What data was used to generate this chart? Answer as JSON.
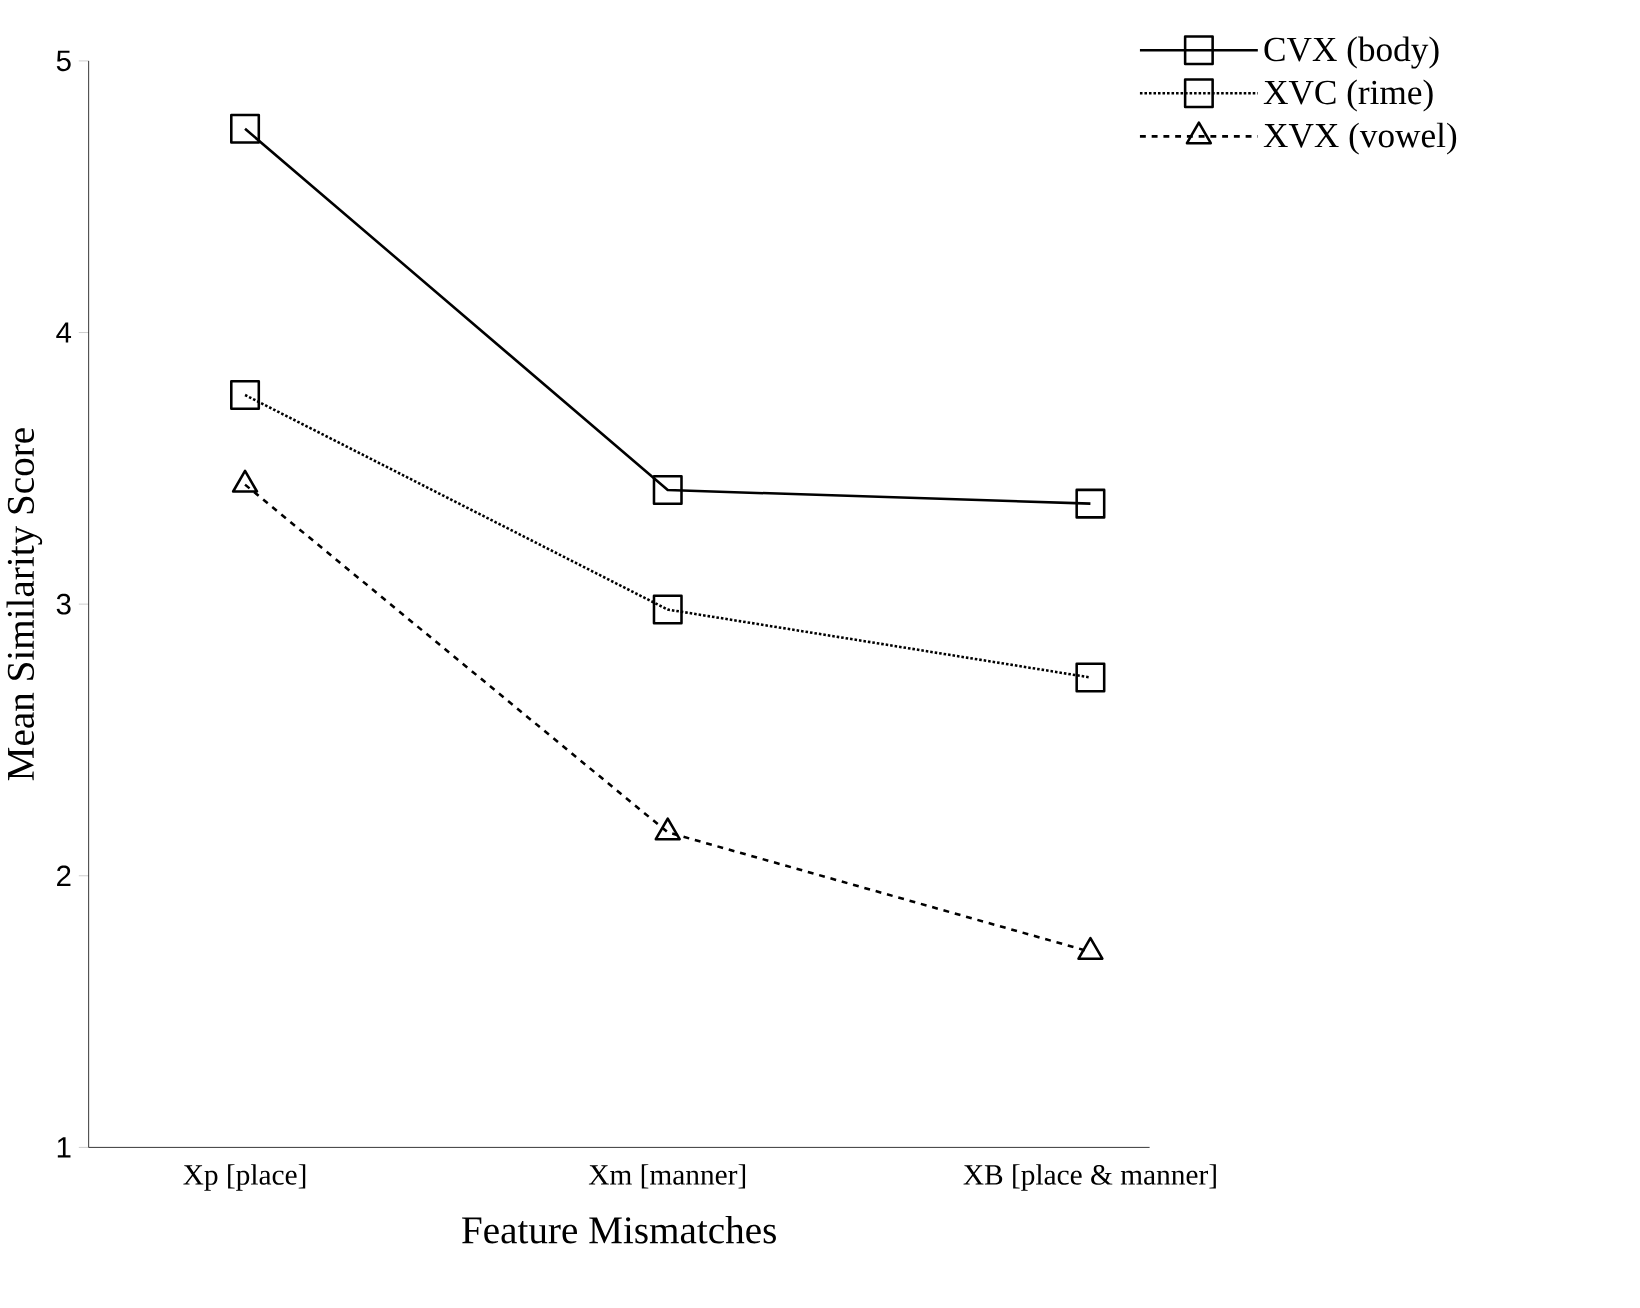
{
  "chart_data": {
    "type": "line",
    "xlabel": "Feature Mismatches",
    "ylabel": "Mean Similarity Score",
    "categories": [
      "Xp [place]",
      "Xm [manner]",
      "XB [place & manner]"
    ],
    "series": [
      {
        "name": "CVX (body)",
        "color": "#000000",
        "values": [
          4.75,
          3.42,
          3.37
        ],
        "marker": "square",
        "line_style": "solid"
      },
      {
        "name": "XVC (rime)",
        "color": "#000000",
        "values": [
          3.77,
          2.98,
          2.73
        ],
        "marker": "square",
        "line_style": "dotted"
      },
      {
        "name": "XVX (vowel)",
        "color": "#000000",
        "values": [
          3.44,
          2.16,
          1.72
        ],
        "marker": "triangle",
        "line_style": "dashed"
      }
    ],
    "ylim": [
      1,
      5
    ],
    "yticks": [
      1,
      2,
      3,
      4,
      5
    ],
    "legend": "top right",
    "grid": false
  }
}
